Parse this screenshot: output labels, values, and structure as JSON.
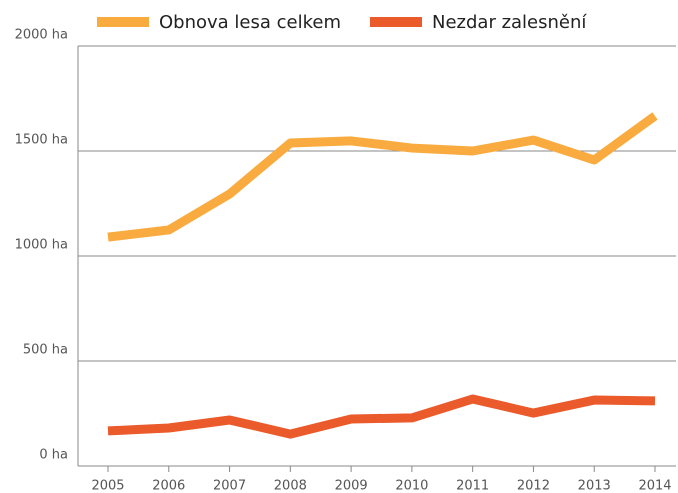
{
  "chart_data": {
    "type": "line",
    "categories": [
      "2005",
      "2006",
      "2007",
      "2008",
      "2009",
      "2010",
      "2011",
      "2012",
      "2013",
      "2014"
    ],
    "series": [
      {
        "name": "Obnova lesa celkem",
        "color": "#f9ab3f",
        "values": [
          1090,
          1124,
          1295,
          1538,
          1548,
          1514,
          1500,
          1552,
          1457,
          1667
        ]
      },
      {
        "name": "Nezdar zalesnění",
        "color": "#ea5a2b",
        "values": [
          167,
          181,
          219,
          152,
          224,
          229,
          319,
          252,
          314,
          310
        ]
      }
    ],
    "ylim": [
      0,
      2000
    ],
    "yticks": [
      {
        "value": 0,
        "label": "0 ha"
      },
      {
        "value": 500,
        "label": "500 ha"
      },
      {
        "value": 1000,
        "label": "1000 ha"
      },
      {
        "value": 1500,
        "label": "1500 ha"
      },
      {
        "value": 2000,
        "label": "2000 ha"
      }
    ],
    "grid": true
  }
}
